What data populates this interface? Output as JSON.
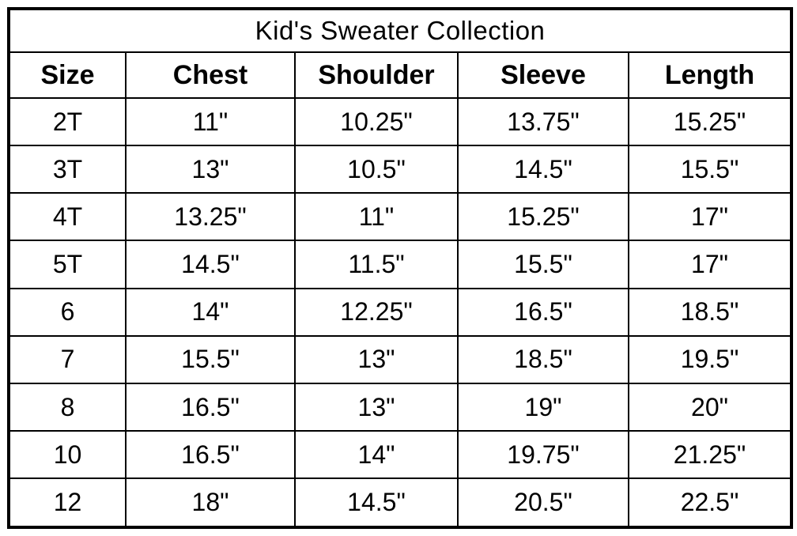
{
  "title": "Kid's Sweater Collection",
  "table": {
    "headers": [
      "Size",
      "Chest",
      "Shoulder",
      "Sleeve",
      "Length"
    ],
    "rows": [
      [
        "2T",
        "11\"",
        "10.25\"",
        "13.75\"",
        "15.25\""
      ],
      [
        "3T",
        "13\"",
        "10.5\"",
        "14.5\"",
        "15.5\""
      ],
      [
        "4T",
        "13.25\"",
        "11\"",
        "15.25\"",
        "17\""
      ],
      [
        "5T",
        "14.5\"",
        "11.5\"",
        "15.5\"",
        "17\""
      ],
      [
        "6",
        "14\"",
        "12.25\"",
        "16.5\"",
        "18.5\""
      ],
      [
        "7",
        "15.5\"",
        "13\"",
        "18.5\"",
        "19.5\""
      ],
      [
        "8",
        "16.5\"",
        "13\"",
        "19\"",
        "20\""
      ],
      [
        "10",
        "16.5\"",
        "14\"",
        "19.75\"",
        "21.25\""
      ],
      [
        "12",
        "18\"",
        "14.5\"",
        "20.5\"",
        "22.5\""
      ]
    ]
  },
  "chart_data": {
    "type": "table",
    "title": "Kid's Sweater Collection",
    "columns": [
      "Size",
      "Chest",
      "Shoulder",
      "Sleeve",
      "Length"
    ],
    "rows": [
      {
        "size": "2T",
        "chest_in": 11,
        "shoulder_in": 10.25,
        "sleeve_in": 13.75,
        "length_in": 15.25
      },
      {
        "size": "3T",
        "chest_in": 13,
        "shoulder_in": 10.5,
        "sleeve_in": 14.5,
        "length_in": 15.5
      },
      {
        "size": "4T",
        "chest_in": 13.25,
        "shoulder_in": 11,
        "sleeve_in": 15.25,
        "length_in": 17
      },
      {
        "size": "5T",
        "chest_in": 14.5,
        "shoulder_in": 11.5,
        "sleeve_in": 15.5,
        "length_in": 17
      },
      {
        "size": "6",
        "chest_in": 14,
        "shoulder_in": 12.25,
        "sleeve_in": 16.5,
        "length_in": 18.5
      },
      {
        "size": "7",
        "chest_in": 15.5,
        "shoulder_in": 13,
        "sleeve_in": 18.5,
        "length_in": 19.5
      },
      {
        "size": "8",
        "chest_in": 16.5,
        "shoulder_in": 13,
        "sleeve_in": 19,
        "length_in": 20
      },
      {
        "size": "10",
        "chest_in": 16.5,
        "shoulder_in": 14,
        "sleeve_in": 19.75,
        "length_in": 21.25
      },
      {
        "size": "12",
        "chest_in": 18,
        "shoulder_in": 14.5,
        "sleeve_in": 20.5,
        "length_in": 22.5
      }
    ],
    "units": "inches",
    "colors": {
      "border": "#000000",
      "background": "#ffffff",
      "text": "#000000"
    }
  }
}
